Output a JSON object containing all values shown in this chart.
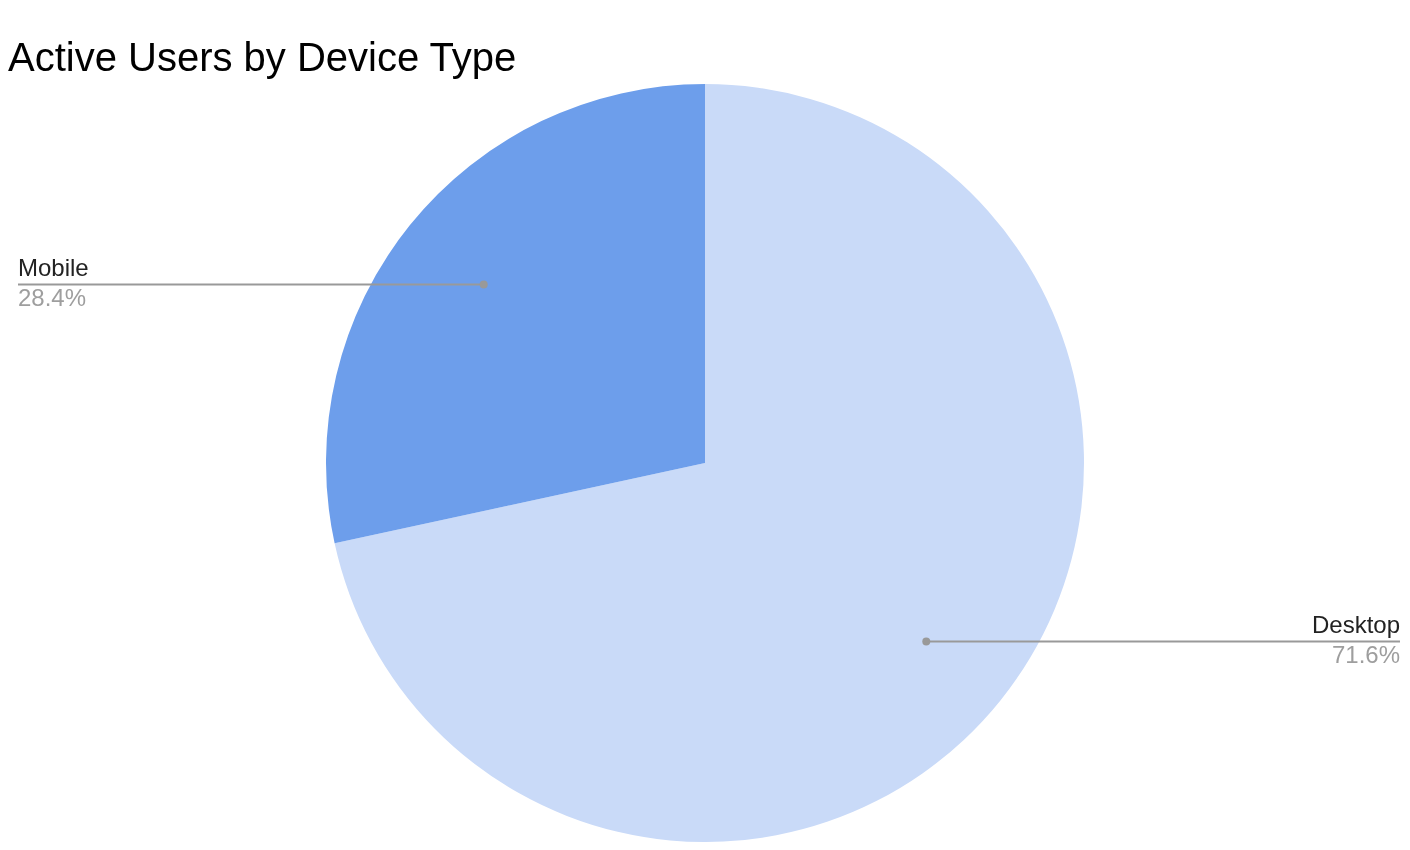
{
  "chart_data": {
    "type": "pie",
    "title": "Active Users by Device Type",
    "categories": [
      "Desktop",
      "Mobile"
    ],
    "values": [
      71.6,
      28.4
    ],
    "colors": [
      "#c9daf8",
      "#6d9eeb"
    ],
    "value_labels": [
      "71.6%",
      "28.4%"
    ],
    "legend": false
  }
}
